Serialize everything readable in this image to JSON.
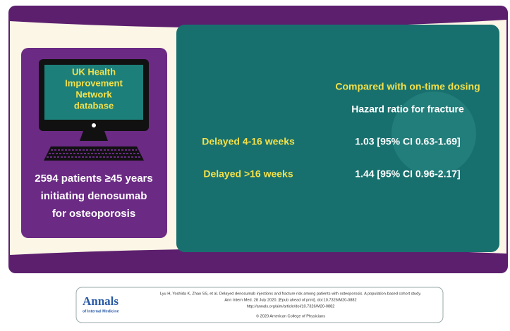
{
  "left_panel": {
    "screen_lines": [
      "UK Health",
      "Improvement",
      "Network",
      "database"
    ],
    "patients_lines": [
      "2594 patients ≥45 years",
      "initiating denosumab",
      "for osteoporosis"
    ]
  },
  "right_panel": {
    "comparison": "Compared with on-time dosing",
    "measure": "Hazard ratio for fracture",
    "rows": [
      [
        "Delayed 4-16 weeks",
        "1.03 [95% CI 0.63-1.69]"
      ],
      [
        "Delayed >16 weeks",
        "1.44 [95% CI 0.96-2.17]"
      ]
    ]
  },
  "footer": {
    "logo": "Annals",
    "logo_subtitle": "of Internal Medicine",
    "citation_lines": [
      "Lyu H, Yoshida K, Zhao SS, et al. Delayed denosumab injections and fracture risk among patients with osteoporosis. A population-based cohort study.",
      "Ann Intern Med. 28 July 2020. [Epub ahead of print]. doi:10.7326/M20-0882",
      "http://annals.org/aim/article/doi/10.7326/M20-0882",
      "© 2020 American College of Physicians"
    ]
  }
}
